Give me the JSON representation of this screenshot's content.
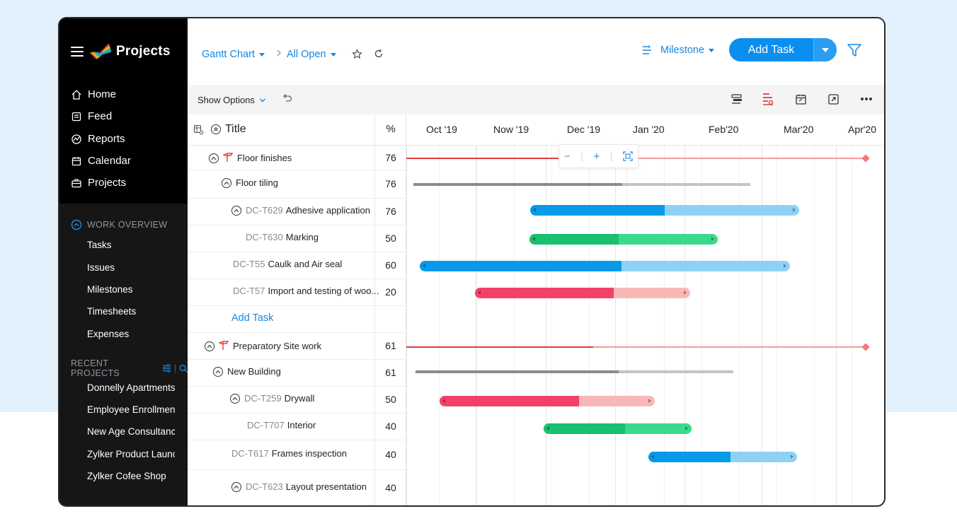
{
  "sidebar": {
    "app_title": "Projects",
    "nav": [
      {
        "label": "Home",
        "icon": "home-icon"
      },
      {
        "label": "Feed",
        "icon": "feed-icon"
      },
      {
        "label": "Reports",
        "icon": "reports-icon"
      },
      {
        "label": "Calendar",
        "icon": "calendar-icon"
      },
      {
        "label": "Projects",
        "icon": "briefcase-icon"
      }
    ],
    "work_overview": {
      "heading": "WORK OVERVIEW",
      "items": [
        "Tasks",
        "Issues",
        "Milestones",
        "Timesheets",
        "Expenses"
      ]
    },
    "recent_projects": {
      "heading": "RECENT PROJECTS",
      "items": [
        "Donnelly Apartments",
        "Employee Enrollment",
        "New Age Consultancy",
        "Zylker Product Launch",
        "Zylker Cofee Shop"
      ]
    }
  },
  "header": {
    "view": "Gantt Chart",
    "filter": "All Open",
    "group_by": "Milestone",
    "add_task": "Add Task"
  },
  "toolbar": {
    "show_options": "Show Options"
  },
  "table": {
    "col_title": "Title",
    "col_pct": "%",
    "months": [
      "Oct '19",
      "Now '19",
      "Dec '19",
      "Jan '20",
      "Feb'20",
      "Mar'20",
      "Apr'20"
    ],
    "rows": [
      {
        "id": "",
        "title": "Floor finishes",
        "pct": "76"
      },
      {
        "id": "",
        "title": "Floor tiling",
        "pct": "76"
      },
      {
        "id": "DC-T629",
        "title": "Adhesive application",
        "pct": "76"
      },
      {
        "id": "DC-T630",
        "title": "Marking",
        "pct": "50"
      },
      {
        "id": "DC-T55",
        "title": "Caulk and Air seal",
        "pct": "60"
      },
      {
        "id": "DC-T57",
        "title": "Import and testing of woo...",
        "pct": "20"
      },
      {
        "id": "",
        "title": "Add Task",
        "pct": ""
      },
      {
        "id": "",
        "title": "Preparatory Site work",
        "pct": "61"
      },
      {
        "id": "",
        "title": "New Building",
        "pct": "61"
      },
      {
        "id": "DC-T259",
        "title": "Drywall",
        "pct": "50"
      },
      {
        "id": "DC-T707",
        "title": "Interior",
        "pct": "40"
      },
      {
        "id": "DC-T617",
        "title": "Frames inspection",
        "pct": "40"
      },
      {
        "id": "DC-T623",
        "title": "Layout presentation",
        "pct": "40"
      }
    ]
  },
  "zoom": {
    "minus": "−",
    "plus": "+"
  },
  "colors": {
    "accent": "#0a8ff0",
    "milestone": "#e23b3b",
    "blue_done": "#079ae8",
    "blue_rest": "#8fd1f5",
    "green_done": "#18c06f",
    "green_rest": "#3bd98b",
    "red_done": "#f2406a",
    "red_rest": "#f7b8b6"
  }
}
